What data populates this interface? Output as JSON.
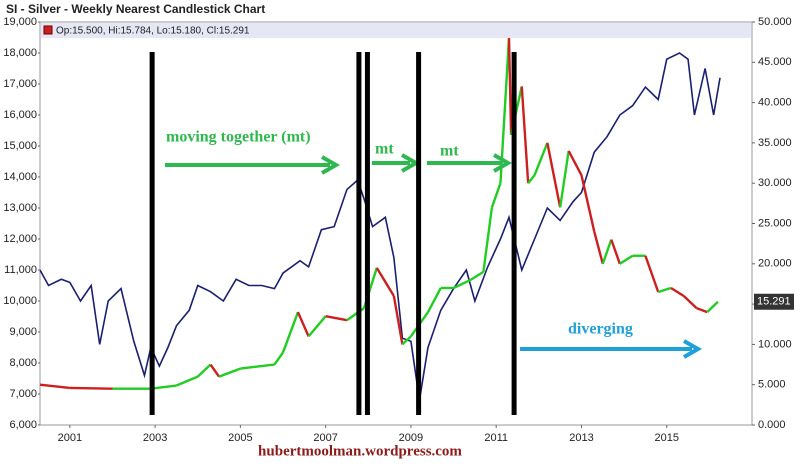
{
  "chart_data": {
    "type": "line",
    "title": "SI - Silver - Weekly Nearest Candlestick Chart",
    "legend_text": "Op:15.500, Hi:15.784, Lo:15.180, Cl:15.291",
    "annotations": [
      "moving together (mt)",
      "mt",
      "mt",
      "diverging"
    ],
    "credit": "hubertmoolman.wordpress.com",
    "xlim": [
      2000.3,
      2017.0
    ],
    "xticks": [
      2001,
      2003,
      2005,
      2007,
      2009,
      2011,
      2013,
      2015
    ],
    "ylim": [
      6000,
      19000
    ],
    "yticks": [
      {
        "value": 6000,
        "label": "6,000"
      },
      {
        "value": 7000,
        "label": "7,000"
      },
      {
        "value": 8000,
        "label": "8,000"
      },
      {
        "value": 9000,
        "label": "9,000"
      },
      {
        "value": 10000,
        "label": "10,000"
      },
      {
        "value": 11000,
        "label": "11,000"
      },
      {
        "value": 12000,
        "label": "12,000"
      },
      {
        "value": 13000,
        "label": "13,000"
      },
      {
        "value": 14000,
        "label": "14,000"
      },
      {
        "value": 15000,
        "label": "15,000"
      },
      {
        "value": 16000,
        "label": "16,000"
      },
      {
        "value": 17000,
        "label": "17,000"
      },
      {
        "value": 18000,
        "label": "18,000"
      },
      {
        "value": 19000,
        "label": "19,000"
      }
    ],
    "y2lim": [
      0,
      50
    ],
    "y2ticks": [
      {
        "value": 0,
        "label": "0.000"
      },
      {
        "value": 5,
        "label": "5.000"
      },
      {
        "value": 10,
        "label": "10.000"
      },
      {
        "value": 15,
        "label": "15.000"
      },
      {
        "value": 20,
        "label": "20.000"
      },
      {
        "value": 25,
        "label": "25.000"
      },
      {
        "value": 30,
        "label": "30.000"
      },
      {
        "value": 35,
        "label": "35.000"
      },
      {
        "value": 40,
        "label": "40.000"
      },
      {
        "value": 45,
        "label": "45.000"
      },
      {
        "value": 50,
        "label": "50.000"
      }
    ],
    "vlines": [
      2002.93,
      2007.78,
      2007.98,
      2009.18,
      2011.42
    ],
    "series": [
      {
        "color": "#1a1f6e",
        "x": [
          2000.3,
          2000.5,
          2000.8,
          2001.0,
          2001.25,
          2001.5,
          2001.7,
          2001.9,
          2002.2,
          2002.5,
          2002.75,
          2002.9,
          2003.1,
          2003.3,
          2003.5,
          2003.8,
          2004.0,
          2004.3,
          2004.6,
          2004.9,
          2005.2,
          2005.5,
          2005.8,
          2006.0,
          2006.4,
          2006.6,
          2006.9,
          2007.2,
          2007.5,
          2007.75,
          2007.9,
          2008.1,
          2008.4,
          2008.6,
          2008.8,
          2009.0,
          2009.2,
          2009.4,
          2009.7,
          2010.0,
          2010.3,
          2010.5,
          2010.8,
          2011.1,
          2011.3,
          2011.6,
          2011.9,
          2012.2,
          2012.5,
          2012.8,
          2013.0,
          2013.3,
          2013.6,
          2013.9,
          2014.2,
          2014.5,
          2014.8,
          2015.0,
          2015.3,
          2015.5,
          2015.65,
          2015.9,
          2016.1,
          2016.25
        ],
        "values": [
          11000,
          10500,
          10700,
          10600,
          10000,
          10500,
          8600,
          10000,
          10400,
          8700,
          7600,
          8500,
          7900,
          8500,
          9200,
          9700,
          10500,
          10300,
          10000,
          10700,
          10500,
          10500,
          10400,
          10900,
          11300,
          11100,
          12300,
          12400,
          13600,
          13900,
          13300,
          12400,
          12700,
          11400,
          8800,
          8700,
          6800,
          8500,
          9700,
          10400,
          11000,
          10000,
          11100,
          12000,
          12700,
          11000,
          12000,
          13000,
          12600,
          13200,
          13500,
          14800,
          15300,
          16000,
          16300,
          16900,
          16500,
          17800,
          18000,
          17800,
          16000,
          17500,
          16000,
          17200
        ]
      },
      {
        "color": "#22cc22",
        "down_color": "#cc2020",
        "axis": "y2",
        "x": [
          2000.3,
          2001.0,
          2002.0,
          2002.9,
          2003.5,
          2004.0,
          2004.3,
          2004.5,
          2005.0,
          2005.8,
          2006.0,
          2006.35,
          2006.6,
          2007.0,
          2007.5,
          2007.9,
          2008.2,
          2008.6,
          2008.8,
          2009.0,
          2009.4,
          2009.7,
          2010.0,
          2010.4,
          2010.7,
          2010.9,
          2011.1,
          2011.3,
          2011.35,
          2011.6,
          2011.75,
          2011.9,
          2012.2,
          2012.5,
          2012.7,
          2013.0,
          2013.3,
          2013.5,
          2013.7,
          2013.9,
          2014.2,
          2014.5,
          2014.8,
          2015.1,
          2015.4,
          2015.7,
          2015.95,
          2016.2
        ],
        "values": [
          5.0,
          4.6,
          4.5,
          4.5,
          4.9,
          6.0,
          7.5,
          6.0,
          7.0,
          7.5,
          9.0,
          14,
          11,
          13.5,
          13,
          14.5,
          19.5,
          16,
          10,
          11,
          14,
          17,
          17,
          18,
          19,
          27,
          30,
          48,
          36,
          42,
          30,
          31,
          35,
          27,
          34,
          31,
          24,
          20,
          23,
          20,
          21,
          21,
          16.5,
          17,
          16,
          14.5,
          14,
          15.291
        ]
      }
    ]
  }
}
